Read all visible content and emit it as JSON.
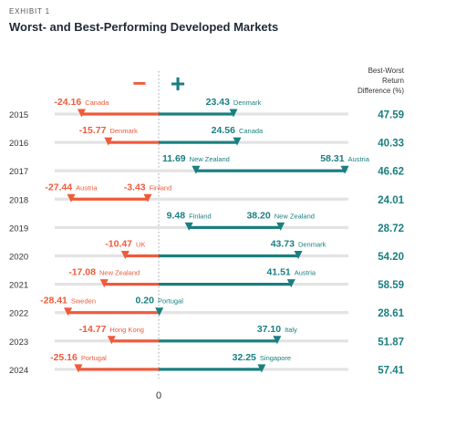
{
  "exhibit_label": "EXHIBIT 1",
  "title": "Worst- and Best-Performing Developed Markets",
  "colors": {
    "negative": "#f05a3a",
    "positive": "#1a7f80",
    "axis": "#9aa0a6",
    "bar_bg": "#e3e3e3"
  },
  "chart_data": {
    "type": "dumbbell",
    "title": "Worst- and Best-Performing Developed Markets",
    "minus_symbol": "−",
    "plus_symbol": "+",
    "zero_label": "0",
    "diff_header": [
      "Best-Worst",
      "Return",
      "Difference (%)"
    ],
    "xlim": [
      -30,
      60
    ],
    "rows": [
      {
        "year": "2015",
        "worst_value": -24.16,
        "worst_label": "-24.16",
        "worst_country": "Canada",
        "best_value": 23.43,
        "best_label": "23.43",
        "best_country": "Denmark",
        "difference": "47.59"
      },
      {
        "year": "2016",
        "worst_value": -15.77,
        "worst_label": "-15.77",
        "worst_country": "Denmark",
        "best_value": 24.56,
        "best_label": "24.56",
        "best_country": "Canada",
        "difference": "40.33"
      },
      {
        "year": "2017",
        "worst_value": 11.69,
        "worst_label": "11.69",
        "worst_country": "New Zealand",
        "best_value": 58.31,
        "best_label": "58.31",
        "best_country": "Austria",
        "difference": "46.62"
      },
      {
        "year": "2018",
        "worst_value": -27.44,
        "worst_label": "-27.44",
        "worst_country": "Austria",
        "best_value": -3.43,
        "best_label": "-3.43",
        "best_country": "Finland",
        "difference": "24.01"
      },
      {
        "year": "2019",
        "worst_value": 9.48,
        "worst_label": "9.48",
        "worst_country": "Finland",
        "best_value": 38.2,
        "best_label": "38.20",
        "best_country": "New Zealand",
        "difference": "28.72"
      },
      {
        "year": "2020",
        "worst_value": -10.47,
        "worst_label": "-10.47",
        "worst_country": "UK",
        "best_value": 43.73,
        "best_label": "43.73",
        "best_country": "Denmark",
        "difference": "54.20"
      },
      {
        "year": "2021",
        "worst_value": -17.08,
        "worst_label": "-17.08",
        "worst_country": "New Zealand",
        "best_value": 41.51,
        "best_label": "41.51",
        "best_country": "Austria",
        "difference": "58.59"
      },
      {
        "year": "2022",
        "worst_value": -28.41,
        "worst_label": "-28.41",
        "worst_country": "Sweden",
        "best_value": 0.2,
        "best_label": "0.20",
        "best_country": "Portugal",
        "difference": "28.61"
      },
      {
        "year": "2023",
        "worst_value": -14.77,
        "worst_label": "-14.77",
        "worst_country": "Hong Kong",
        "best_value": 37.1,
        "best_label": "37.10",
        "best_country": "Italy",
        "difference": "51.87"
      },
      {
        "year": "2024",
        "worst_value": -25.16,
        "worst_label": "-25.16",
        "worst_country": "Portugal",
        "best_value": 32.25,
        "best_label": "32.25",
        "best_country": "Singapore",
        "difference": "57.41"
      }
    ]
  }
}
